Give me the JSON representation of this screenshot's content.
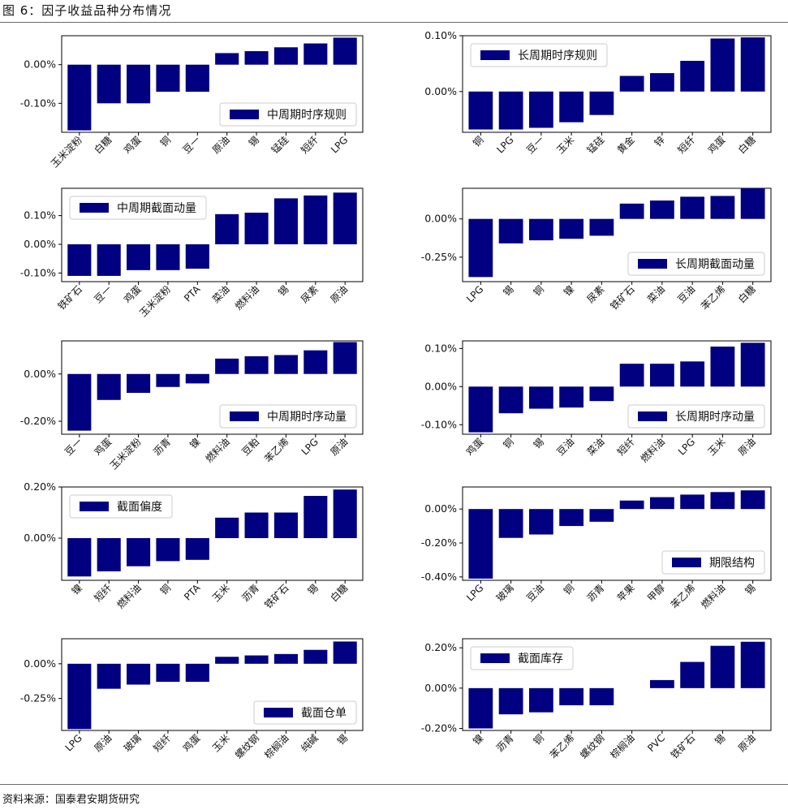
{
  "figure": {
    "title": "图 6：因子收益品种分布情况",
    "source": "资料来源：国泰君安期货研究"
  },
  "colors": {
    "bar": "#000080",
    "axis": "#000000"
  },
  "chart_data": [
    {
      "type": "bar",
      "legend": "中周期时序规则",
      "legend_loc": "lower-right",
      "categories": [
        "玉米淀粉",
        "白糖",
        "鸡蛋",
        "铜",
        "豆一",
        "原油",
        "锡",
        "锰硅",
        "短纤",
        "LPG"
      ],
      "values": [
        -0.17,
        -0.1,
        -0.1,
        -0.07,
        -0.07,
        0.03,
        0.035,
        0.045,
        0.055,
        0.07
      ],
      "ylim": [
        -0.175,
        0.075
      ],
      "yticks": [
        0.0,
        -0.1
      ],
      "ytick_labels": [
        "0.00%",
        "-0.10%"
      ]
    },
    {
      "type": "bar",
      "legend": "长周期时序规则",
      "legend_loc": "upper-left",
      "categories": [
        "铜",
        "LPG",
        "豆一",
        "玉米",
        "锰硅",
        "黄金",
        "锌",
        "短纤",
        "鸡蛋",
        "白糖"
      ],
      "values": [
        -0.068,
        -0.068,
        -0.065,
        -0.055,
        -0.042,
        0.028,
        0.033,
        0.055,
        0.095,
        0.097
      ],
      "ylim": [
        -0.073,
        0.1
      ],
      "yticks": [
        0.1,
        0.0
      ],
      "ytick_labels": [
        "0.10%",
        "0.00%"
      ]
    },
    {
      "type": "bar",
      "legend": "中周期截面动量",
      "legend_loc": "upper-left",
      "categories": [
        "铁矿石",
        "豆一",
        "鸡蛋",
        "玉米淀粉",
        "PTA",
        "菜油",
        "燃料油",
        "锡",
        "尿素",
        "原油"
      ],
      "values": [
        -0.11,
        -0.11,
        -0.09,
        -0.09,
        -0.085,
        0.105,
        0.11,
        0.16,
        0.17,
        0.18
      ],
      "ylim": [
        -0.13,
        0.195
      ],
      "yticks": [
        0.1,
        0.0,
        -0.1
      ],
      "ytick_labels": [
        "0.10%",
        "0.00%",
        "-0.10%"
      ]
    },
    {
      "type": "bar",
      "legend": "长周期截面动量",
      "legend_loc": "lower-right",
      "categories": [
        "LPG",
        "锡",
        "铜",
        "镍",
        "尿素",
        "铁矿石",
        "菜油",
        "豆油",
        "苯乙烯",
        "白糖"
      ],
      "values": [
        -0.38,
        -0.16,
        -0.14,
        -0.13,
        -0.11,
        0.1,
        0.12,
        0.145,
        0.15,
        0.2
      ],
      "ylim": [
        -0.41,
        0.2
      ],
      "yticks": [
        0.0,
        -0.25
      ],
      "ytick_labels": [
        "0.00%",
        "-0.25%"
      ]
    },
    {
      "type": "bar",
      "legend": "中周期时序动量",
      "legend_loc": "lower-right",
      "categories": [
        "豆一",
        "鸡蛋",
        "玉米淀粉",
        "沥青",
        "镍",
        "燃料油",
        "豆粕",
        "苯乙烯",
        "LPG",
        "原油"
      ],
      "values": [
        -0.24,
        -0.11,
        -0.08,
        -0.055,
        -0.04,
        0.065,
        0.075,
        0.08,
        0.1,
        0.135
      ],
      "ylim": [
        -0.255,
        0.14
      ],
      "yticks": [
        0.0,
        -0.2
      ],
      "ytick_labels": [
        "0.00%",
        "-0.20%"
      ]
    },
    {
      "type": "bar",
      "legend": "长周期时序动量",
      "legend_loc": "lower-right",
      "categories": [
        "鸡蛋",
        "铜",
        "锡",
        "豆油",
        "菜油",
        "短纤",
        "燃料油",
        "LPG",
        "玉米",
        "原油"
      ],
      "values": [
        -0.12,
        -0.07,
        -0.058,
        -0.055,
        -0.038,
        0.06,
        0.06,
        0.066,
        0.105,
        0.115
      ],
      "ylim": [
        -0.125,
        0.12
      ],
      "yticks": [
        0.1,
        0.0,
        -0.1
      ],
      "ytick_labels": [
        "0.10%",
        "0.00%",
        "-0.10%"
      ]
    },
    {
      "type": "bar",
      "legend": "截面偏度",
      "legend_loc": "upper-left",
      "categories": [
        "镍",
        "短纤",
        "燃料油",
        "铜",
        "PTA",
        "玉米",
        "沥青",
        "铁矿石",
        "锡",
        "白糖"
      ],
      "values": [
        -0.15,
        -0.13,
        -0.11,
        -0.09,
        -0.085,
        0.08,
        0.1,
        0.1,
        0.165,
        0.19
      ],
      "ylim": [
        -0.165,
        0.2
      ],
      "yticks": [
        0.2,
        0.0
      ],
      "ytick_labels": [
        "0.20%",
        "0.00%"
      ]
    },
    {
      "type": "bar",
      "legend": "期限结构",
      "legend_loc": "lower-right",
      "categories": [
        "LPG",
        "玻璃",
        "豆油",
        "铜",
        "沥青",
        "苹果",
        "甲醇",
        "苯乙烯",
        "燃料油",
        "锡"
      ],
      "values": [
        -0.41,
        -0.17,
        -0.15,
        -0.1,
        -0.075,
        0.05,
        0.07,
        0.085,
        0.1,
        0.11
      ],
      "ylim": [
        -0.42,
        0.13
      ],
      "yticks": [
        0.0,
        -0.2,
        -0.4
      ],
      "ytick_labels": [
        "0.00%",
        "-0.20%",
        "-0.40%"
      ]
    },
    {
      "type": "bar",
      "legend": "截面仓单",
      "legend_loc": "lower-right",
      "categories": [
        "LPG",
        "原油",
        "玻璃",
        "短纤",
        "鸡蛋",
        "玉米",
        "螺纹钢",
        "棕榈油",
        "纯碱",
        "锡"
      ],
      "values": [
        -0.47,
        -0.18,
        -0.15,
        -0.13,
        -0.13,
        0.05,
        0.06,
        0.07,
        0.1,
        0.16
      ],
      "ylim": [
        -0.48,
        0.18
      ],
      "yticks": [
        0.0,
        -0.25
      ],
      "ytick_labels": [
        "0.00%",
        "-0.25%"
      ]
    },
    {
      "type": "bar",
      "legend": "截面库存",
      "legend_loc": "upper-left",
      "categories": [
        "镍",
        "沥青",
        "铜",
        "苯乙烯",
        "螺纹钢",
        "棕榈油",
        "PVC",
        "铁矿石",
        "锡",
        "原油"
      ],
      "values": [
        -0.2,
        -0.13,
        -0.12,
        -0.085,
        -0.085,
        0.0,
        0.04,
        0.13,
        0.21,
        0.23
      ],
      "ylim": [
        -0.21,
        0.245
      ],
      "yticks": [
        0.2,
        0.0,
        -0.2
      ],
      "ytick_labels": [
        "0.20%",
        "0.00%",
        "-0.20%"
      ]
    }
  ]
}
